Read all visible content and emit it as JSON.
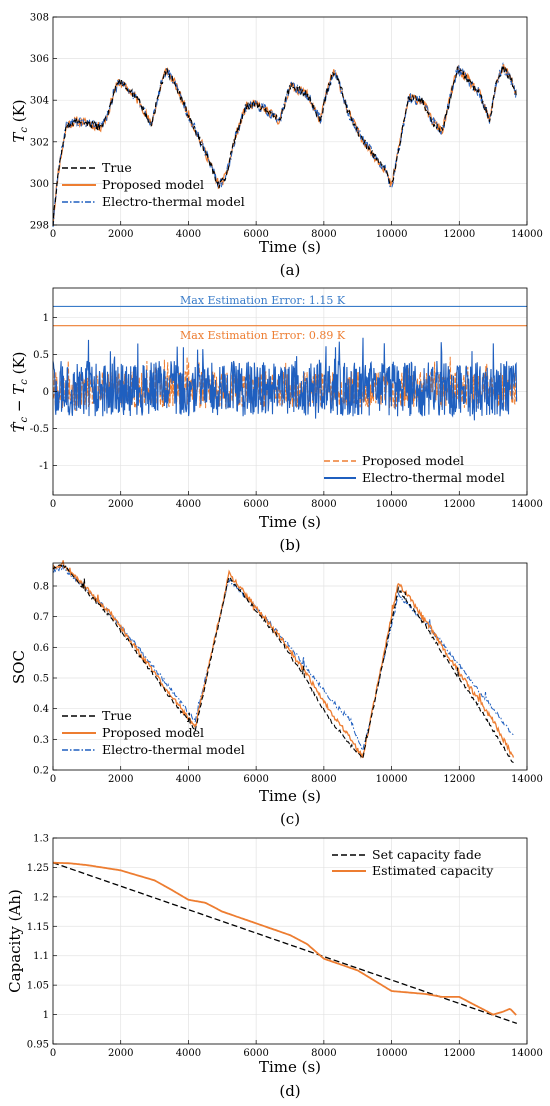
{
  "colors": {
    "true": "#000000",
    "proposed": "#ED7D31",
    "electro": "#1F5FBF",
    "set_fade": "#000000",
    "estimated": "#ED7D31",
    "max_blue": "#3A7CC9",
    "max_orange": "#ED7D31"
  },
  "chart_data": [
    {
      "id": "a",
      "type": "line",
      "caption": "(a)",
      "xlabel": "Time (s)",
      "ylabel_main": "T",
      "ylabel_sub": "c",
      "ylabel_unit": " (K)",
      "xlim": [
        0,
        14000
      ],
      "ylim": [
        298,
        308
      ],
      "xticks": [
        "0",
        "2000",
        "4000",
        "6000",
        "8000",
        "10000",
        "12000",
        "14000"
      ],
      "yticks": [
        "298",
        "300",
        "302",
        "304",
        "306",
        "308"
      ],
      "grid": true,
      "legend_position": "lower-left",
      "legend": [
        {
          "label": "True",
          "style": "dashed",
          "color": "#000000"
        },
        {
          "label": "Proposed model",
          "style": "solid",
          "color": "#ED7D31"
        },
        {
          "label": "Electro-thermal model",
          "style": "dashdot",
          "color": "#1F5FBF"
        }
      ],
      "anchors": {
        "x": [
          0,
          150,
          400,
          700,
          1000,
          1400,
          1600,
          1800,
          1950,
          2300,
          2600,
          2900,
          3200,
          3350,
          3600,
          4000,
          4500,
          4900,
          5100,
          5400,
          5700,
          6000,
          6300,
          6700,
          7000,
          7500,
          7900,
          8100,
          8300,
          8500,
          8700,
          9000,
          9400,
          9800,
          10000,
          10200,
          10500,
          10900,
          11200,
          11500,
          11800,
          11950,
          12200,
          12600,
          12900,
          13100,
          13300,
          13500,
          13700
        ],
        "y": [
          298.1,
          300.5,
          302.8,
          303.0,
          302.9,
          302.7,
          303.2,
          304.4,
          304.9,
          304.4,
          303.8,
          302.8,
          304.8,
          305.5,
          304.8,
          303.3,
          301.5,
          299.9,
          300.3,
          302.3,
          303.7,
          303.8,
          303.5,
          303.0,
          304.7,
          304.3,
          303.0,
          304.5,
          305.4,
          304.6,
          303.5,
          302.5,
          301.5,
          300.7,
          299.8,
          301.6,
          304.1,
          304.0,
          303.0,
          302.5,
          304.6,
          305.5,
          305.1,
          304.3,
          303.0,
          304.9,
          305.6,
          305.1,
          304.2
        ]
      }
    },
    {
      "id": "b",
      "type": "line",
      "caption": "(b)",
      "xlabel": "Time (s)",
      "ylabel_hat": "T̂",
      "ylabel_hat_sub": "c",
      "ylabel_minus": "− T",
      "ylabel_minus_sub": "c",
      "ylabel_unit": " (K)",
      "xlim": [
        0,
        14000
      ],
      "ylim": [
        -1.4,
        1.4
      ],
      "xticks": [
        "0",
        "2000",
        "4000",
        "6000",
        "8000",
        "10000",
        "12000",
        "14000"
      ],
      "yticks": [
        "-1",
        "-0.5",
        "0",
        "0.5",
        "1"
      ],
      "ytick_values": [
        -1,
        -0.5,
        0,
        0.5,
        1
      ],
      "grid": true,
      "legend_position": "lower-right",
      "legend": [
        {
          "label": "Proposed model",
          "style": "dashed",
          "color": "#ED7D31"
        },
        {
          "label": "Electro-thermal model",
          "style": "solid",
          "color": "#1F5FBF"
        }
      ],
      "max_lines": [
        {
          "label": "Max Estimation Error: 1.15 K",
          "value": 1.15,
          "color": "#3A7CC9"
        },
        {
          "label": "Max Estimation Error: 0.89 K",
          "value": 0.89,
          "color": "#ED7D31"
        }
      ],
      "noise": {
        "proposed_amp": 0.5,
        "electro_amp": 0.75,
        "x_end": 13700
      }
    },
    {
      "id": "c",
      "type": "line",
      "caption": "(c)",
      "xlabel": "Time (s)",
      "ylabel": "SOC",
      "xlim": [
        0,
        14000
      ],
      "ylim": [
        0.2,
        0.875
      ],
      "xticks": [
        "0",
        "2000",
        "4000",
        "6000",
        "8000",
        "10000",
        "12000",
        "14000"
      ],
      "yticks": [
        "0.2",
        "0.3",
        "0.4",
        "0.5",
        "0.6",
        "0.7",
        "0.8"
      ],
      "ytick_values": [
        0.2,
        0.3,
        0.4,
        0.5,
        0.6,
        0.7,
        0.8
      ],
      "grid": true,
      "legend_position": "lower-left",
      "legend": [
        {
          "label": "True",
          "style": "dashed",
          "color": "#000000"
        },
        {
          "label": "Proposed model",
          "style": "solid",
          "color": "#ED7D31"
        },
        {
          "label": "Electro-thermal model",
          "style": "dashdot",
          "color": "#1F5FBF"
        }
      ],
      "series": [
        {
          "name": "True",
          "x": [
            0,
            300,
            1000,
            1700,
            2500,
            3300,
            4200,
            5200,
            6000,
            6800,
            7500,
            8200,
            8800,
            9150,
            10200,
            11000,
            11800,
            12500,
            13000,
            13600
          ],
          "y": [
            0.86,
            0.87,
            0.78,
            0.7,
            0.58,
            0.46,
            0.33,
            0.83,
            0.72,
            0.61,
            0.49,
            0.36,
            0.28,
            0.24,
            0.79,
            0.67,
            0.53,
            0.42,
            0.33,
            0.22
          ]
        },
        {
          "name": "Proposed model",
          "x": [
            0,
            300,
            1000,
            1700,
            2500,
            3300,
            4200,
            5200,
            6000,
            6800,
            7500,
            8200,
            8800,
            9150,
            10200,
            11000,
            11800,
            12500,
            13000,
            13600
          ],
          "y": [
            0.86,
            0.87,
            0.79,
            0.71,
            0.59,
            0.47,
            0.34,
            0.84,
            0.73,
            0.62,
            0.51,
            0.39,
            0.3,
            0.24,
            0.81,
            0.69,
            0.55,
            0.44,
            0.36,
            0.24
          ]
        },
        {
          "name": "Electro-thermal model",
          "x": [
            0,
            300,
            1000,
            1700,
            2500,
            3300,
            4200,
            5200,
            6000,
            6800,
            7500,
            8200,
            8800,
            9150,
            10200,
            11000,
            11800,
            12500,
            13000,
            13600
          ],
          "y": [
            0.85,
            0.86,
            0.79,
            0.71,
            0.6,
            0.49,
            0.36,
            0.82,
            0.73,
            0.63,
            0.53,
            0.43,
            0.36,
            0.26,
            0.77,
            0.68,
            0.57,
            0.47,
            0.4,
            0.31
          ]
        }
      ]
    },
    {
      "id": "d",
      "type": "line",
      "caption": "(d)",
      "xlabel": "Time (s)",
      "ylabel": "Capacity (Ah)",
      "xlim": [
        0,
        14000
      ],
      "ylim": [
        0.95,
        1.3
      ],
      "xticks": [
        "0",
        "2000",
        "4000",
        "6000",
        "8000",
        "10000",
        "12000",
        "14000"
      ],
      "yticks": [
        "0.95",
        "1",
        "1.05",
        "1.1",
        "1.15",
        "1.2",
        "1.25",
        "1.3"
      ],
      "ytick_values": [
        0.95,
        1.0,
        1.05,
        1.1,
        1.15,
        1.2,
        1.25,
        1.3
      ],
      "grid": true,
      "legend_position": "top-right",
      "legend": [
        {
          "label": "Set capacity fade",
          "style": "dashed",
          "color": "#000000"
        },
        {
          "label": "Estimated capacity",
          "style": "solid",
          "color": "#ED7D31"
        }
      ],
      "series": [
        {
          "name": "Set capacity fade",
          "x": [
            0,
            13700
          ],
          "y": [
            1.258,
            0.985
          ]
        },
        {
          "name": "Estimated capacity",
          "x": [
            0,
            500,
            1000,
            2000,
            3000,
            3500,
            4000,
            4500,
            5000,
            6000,
            7000,
            7500,
            8000,
            9000,
            10000,
            11000,
            11500,
            12000,
            12500,
            13000,
            13300,
            13500,
            13700
          ],
          "y": [
            1.258,
            1.257,
            1.254,
            1.245,
            1.228,
            1.212,
            1.195,
            1.19,
            1.175,
            1.155,
            1.135,
            1.12,
            1.095,
            1.075,
            1.04,
            1.035,
            1.03,
            1.03,
            1.015,
            1.0,
            1.005,
            1.01,
            0.998
          ]
        }
      ]
    }
  ]
}
